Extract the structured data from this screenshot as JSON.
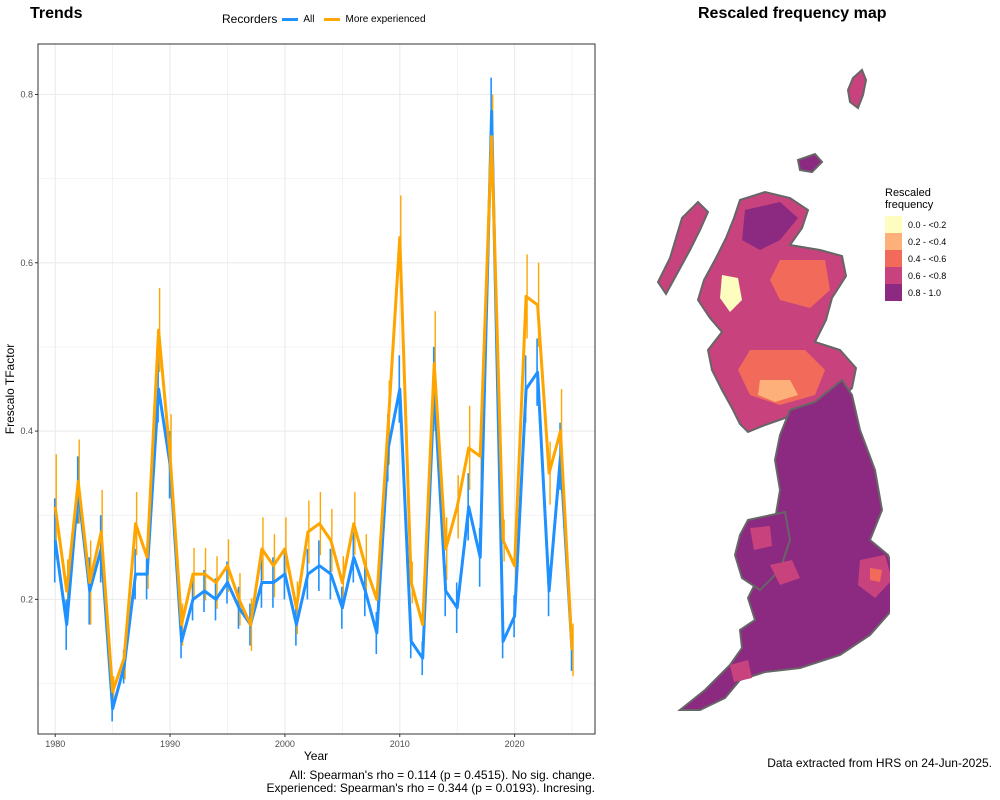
{
  "left_panel": {
    "title": "Trends",
    "legend": {
      "title": "Recorders",
      "items": [
        {
          "label": "All",
          "color": "#1e90ff"
        },
        {
          "label": "More experienced",
          "color": "#ffa500"
        }
      ]
    },
    "caption_lines": [
      "All: Spearman's rho = 0.114 (p = 0.4515). No sig. change.",
      "Experienced: Spearman's rho = 0.344 (p = 0.0193). Incresing."
    ]
  },
  "right_panel": {
    "title": "Rescaled frequency map",
    "legend_title_line1": "Rescaled",
    "legend_title_line2": "frequency",
    "legend_items": [
      {
        "label": "0.0 - <0.2",
        "color": "#fcfdbf"
      },
      {
        "label": "0.2 - <0.4",
        "color": "#fdb07a"
      },
      {
        "label": "0.4 - <0.6",
        "color": "#f26b5a"
      },
      {
        "label": "0.6 - <0.8",
        "color": "#c8437e"
      },
      {
        "label": "0.8 - 1.0",
        "color": "#8c2981"
      }
    ],
    "source_note": "Data extracted from HRS on 24-Jun-2025."
  },
  "chart_data": {
    "type": "line",
    "title": "",
    "xlabel": "Year",
    "ylabel": "Frescalo TFactor",
    "xlim": [
      1978.5,
      2027
    ],
    "ylim": [
      0.04,
      0.86
    ],
    "xticks": [
      1980,
      1990,
      2000,
      2010,
      2020
    ],
    "yticks": [
      0.2,
      0.4,
      0.6,
      0.8
    ],
    "grid": true,
    "legend_position": "top",
    "x": [
      1980,
      1981,
      1982,
      1983,
      1984,
      1985,
      1986,
      1987,
      1988,
      1989,
      1990,
      1991,
      1992,
      1993,
      1994,
      1995,
      1996,
      1997,
      1998,
      1999,
      2000,
      2001,
      2002,
      2003,
      2004,
      2005,
      2006,
      2007,
      2008,
      2009,
      2010,
      2011,
      2012,
      2013,
      2014,
      2015,
      2016,
      2017,
      2018,
      2019,
      2020,
      2021,
      2022,
      2023,
      2024,
      2025
    ],
    "series": [
      {
        "name": "All",
        "color": "#1e90ff",
        "values": [
          0.27,
          0.17,
          0.33,
          0.21,
          0.26,
          0.07,
          0.12,
          0.23,
          0.23,
          0.45,
          0.36,
          0.15,
          0.2,
          0.21,
          0.2,
          0.22,
          0.19,
          0.17,
          0.22,
          0.22,
          0.23,
          0.17,
          0.23,
          0.24,
          0.23,
          0.19,
          0.25,
          0.21,
          0.16,
          0.38,
          0.45,
          0.15,
          0.13,
          0.45,
          0.21,
          0.19,
          0.31,
          0.25,
          0.78,
          0.15,
          0.18,
          0.45,
          0.47,
          0.21,
          0.37,
          0.14
        ],
        "errors": [
          0.05,
          0.03,
          0.04,
          0.04,
          0.04,
          0.015,
          0.02,
          0.03,
          0.03,
          0.04,
          0.04,
          0.02,
          0.025,
          0.025,
          0.025,
          0.025,
          0.025,
          0.025,
          0.03,
          0.03,
          0.03,
          0.025,
          0.03,
          0.03,
          0.03,
          0.025,
          0.03,
          0.03,
          0.025,
          0.04,
          0.04,
          0.02,
          0.02,
          0.05,
          0.03,
          0.03,
          0.04,
          0.035,
          0.04,
          0.02,
          0.025,
          0.04,
          0.04,
          0.03,
          0.04,
          0.025
        ]
      },
      {
        "name": "More experienced",
        "color": "#ffa500",
        "values": [
          0.31,
          0.21,
          0.34,
          0.22,
          0.28,
          0.09,
          0.13,
          0.29,
          0.25,
          0.52,
          0.37,
          0.17,
          0.23,
          0.23,
          0.22,
          0.24,
          0.2,
          0.17,
          0.26,
          0.24,
          0.26,
          0.19,
          0.28,
          0.29,
          0.27,
          0.22,
          0.29,
          0.24,
          0.2,
          0.41,
          0.63,
          0.22,
          0.17,
          0.48,
          0.26,
          0.31,
          0.38,
          0.37,
          0.75,
          0.27,
          0.24,
          0.56,
          0.55,
          0.35,
          0.4,
          0.14
        ]
      }
    ]
  }
}
